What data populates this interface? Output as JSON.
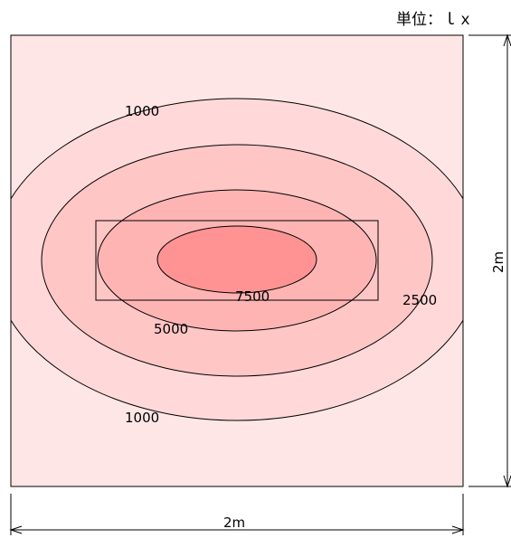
{
  "unit_label": "単位：ｌｘ",
  "contours": [
    {
      "level": "1000",
      "color": "#ffd9d9"
    },
    {
      "level": "2500",
      "color": "#ffc6c6"
    },
    {
      "level": "5000",
      "color": "#ffb4b4"
    },
    {
      "level": "7500",
      "color": "#ff9393"
    }
  ],
  "labels": {
    "c1000_top": "1000",
    "c1000_bottom": "1000",
    "c2500": "2500",
    "c5000": "5000",
    "c7500": "7500"
  },
  "dimensions": {
    "width_label": "2m",
    "height_label": "2m"
  },
  "colors": {
    "background": "#ffe6e6",
    "outline": "#000000"
  }
}
